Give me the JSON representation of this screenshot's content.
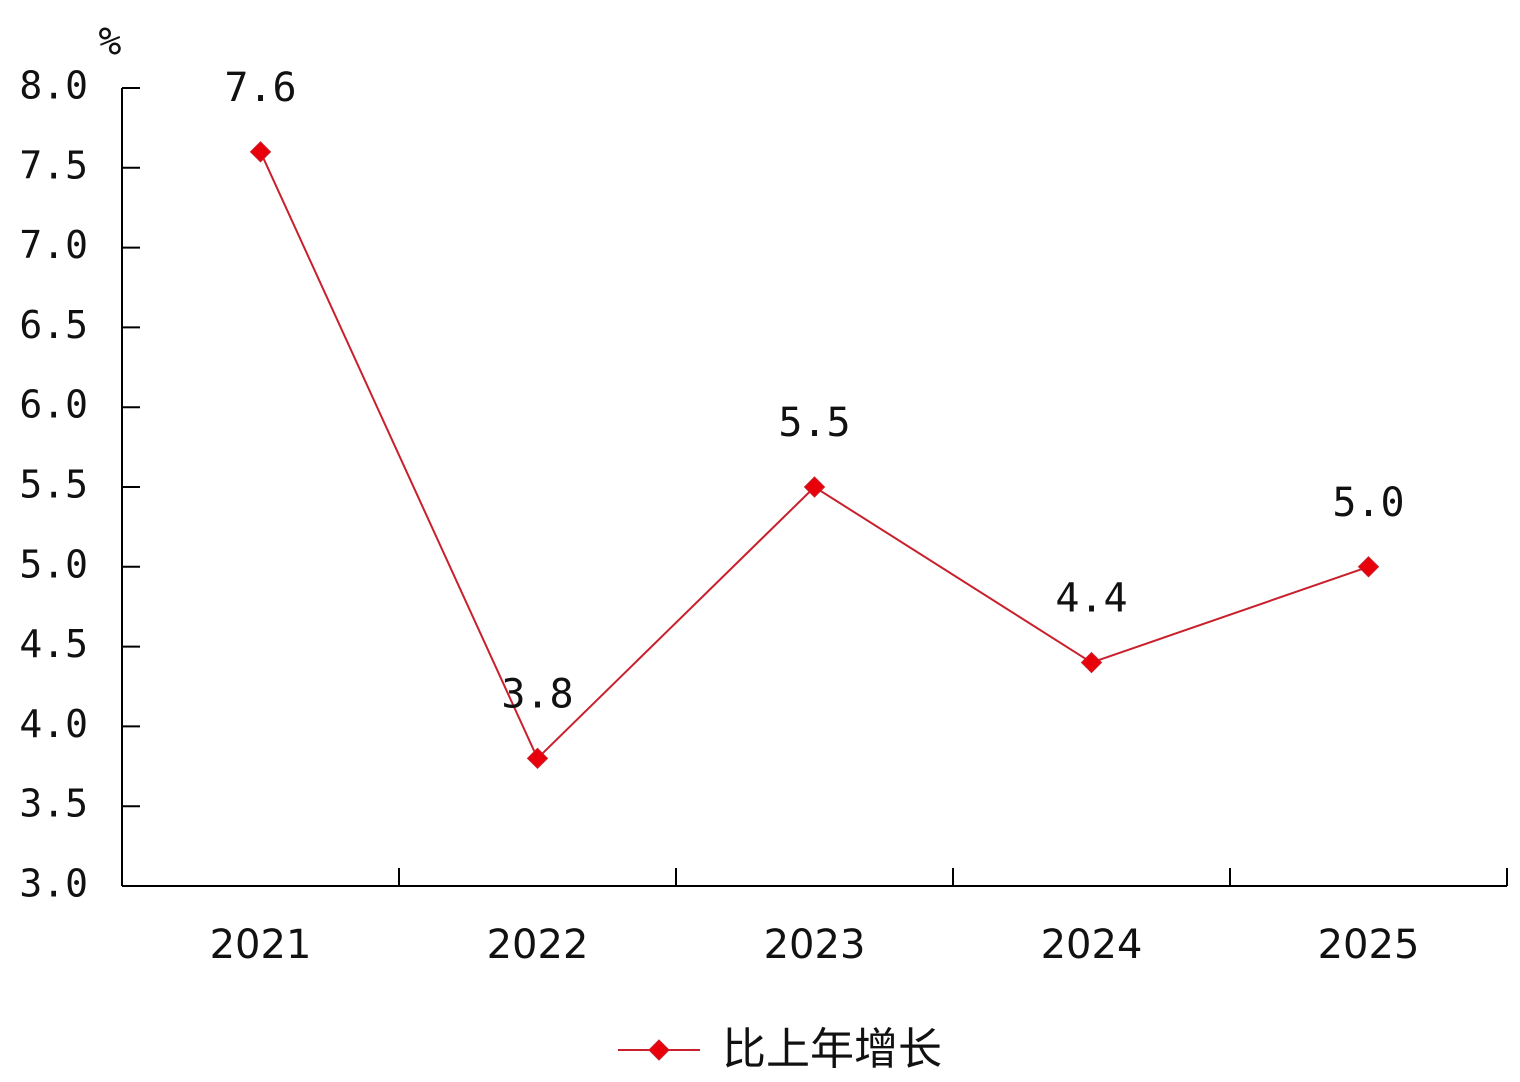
{
  "chart_data": {
    "type": "line",
    "y_unit": "%",
    "categories": [
      "2021",
      "2022",
      "2023",
      "2024",
      "2025"
    ],
    "series": [
      {
        "name": "比上年增长",
        "color": "#c8202c",
        "marker_color": "#e8000b",
        "values": [
          7.6,
          3.8,
          5.5,
          4.4,
          5.0
        ],
        "value_labels": [
          "7.6",
          "3.8",
          "5.5",
          "4.4",
          "5.0"
        ]
      }
    ],
    "ylim": [
      3.0,
      8.0
    ],
    "yticks": [
      {
        "value": 3,
        "label": "3.0"
      },
      {
        "value": 3.5,
        "label": "3.5"
      },
      {
        "value": 4,
        "label": "4.0"
      },
      {
        "value": 4.5,
        "label": "4.5"
      },
      {
        "value": 5,
        "label": "5.0"
      },
      {
        "value": 5.5,
        "label": "5.5"
      },
      {
        "value": 6,
        "label": "6.0"
      },
      {
        "value": 6.5,
        "label": "6.5"
      },
      {
        "value": 7,
        "label": "7.0"
      },
      {
        "value": 7.5,
        "label": "7.5"
      },
      {
        "value": 8,
        "label": "8.0"
      }
    ],
    "grid": false
  }
}
